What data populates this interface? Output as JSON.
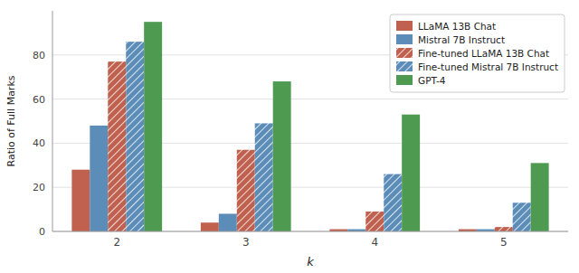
{
  "chart_data": {
    "type": "bar",
    "xlabel": "k",
    "ylabel": "Ratio of Full Marks",
    "categories": [
      "2",
      "3",
      "4",
      "5"
    ],
    "series": [
      {
        "name": "LLaMA 13B Chat",
        "color": "#c0604e",
        "values": [
          28,
          4,
          1,
          1
        ]
      },
      {
        "name": "Mistral 7B Instruct",
        "color": "#5b8db8",
        "values": [
          48,
          8,
          1,
          1
        ]
      },
      {
        "name": "Fine-tuned LLaMA 13B Chat",
        "color": "#c0604e",
        "marker": "hatch",
        "values": [
          77,
          37,
          9,
          2
        ]
      },
      {
        "name": "Fine-tuned Mistral 7B Instruct",
        "color": "#5b8db8",
        "marker": "hatch",
        "values": [
          86,
          49,
          26,
          13
        ]
      },
      {
        "name": "GPT-4",
        "color": "#4e9a50",
        "values": [
          95,
          68,
          53,
          31
        ]
      }
    ],
    "ylim": [
      0,
      100
    ],
    "yticks": [
      0,
      20,
      40,
      60,
      80
    ],
    "grid": true,
    "legend": "upper right"
  }
}
